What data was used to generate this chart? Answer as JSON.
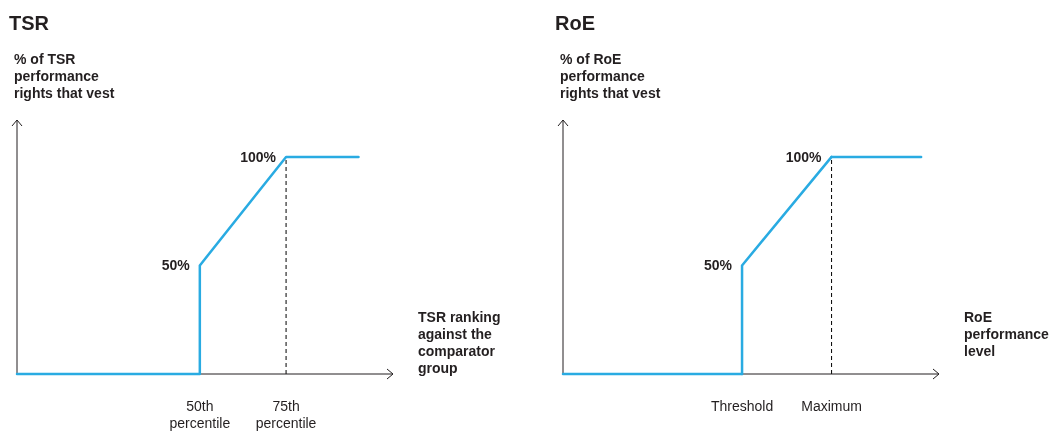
{
  "chart_data": [
    {
      "type": "line",
      "title": "TSR",
      "ylabel": "% of TSR performance rights that vest",
      "xlabel": "TSR ranking against the comparator group",
      "xlim": [
        -3,
        106
      ],
      "xticks": [
        {
          "value": 50,
          "label": "50th percentile"
        },
        {
          "value": 75,
          "label": "75th percentile"
        }
      ],
      "ylim": [
        0,
        117
      ],
      "tick_labels": "x",
      "marker": "none",
      "line_style": "solid",
      "ref_lines": [
        {
          "axis": "x",
          "value": 75,
          "line_style": "dashed",
          "color": "#000000"
        }
      ],
      "series": [
        {
          "color": "#29abe2",
          "x": [
            -3,
            50,
            50,
            75,
            96
          ],
          "values": [
            0,
            0,
            50,
            100,
            100
          ],
          "value_labels": [
            null,
            null,
            "50%",
            "100%",
            null
          ]
        }
      ]
    },
    {
      "type": "line",
      "title": "RoE",
      "ylabel": "% of RoE performance rights that vest",
      "xlabel": "RoE performance level",
      "categories": [
        null,
        null,
        "Threshold",
        "Maximum",
        null
      ],
      "ylim": [
        0,
        117
      ],
      "tick_labels": "x",
      "marker": "none",
      "line_style": "solid",
      "ref_lines": [
        {
          "axis": "x",
          "value": "Maximum",
          "line_style": "dashed",
          "color": "#000000"
        }
      ],
      "series": [
        {
          "color": "#29abe2",
          "values": [
            0,
            0,
            0,
            null,
            null
          ]
        },
        {
          "color": "#29abe2",
          "x": [
            "Threshold",
            "Threshold",
            "Maximum"
          ],
          "values": [
            0,
            50,
            100
          ],
          "value_labels": [
            null,
            "50%",
            "100%"
          ]
        },
        {
          "color": "#29abe2",
          "values": [
            null,
            null,
            null,
            100,
            100
          ]
        }
      ]
    }
  ]
}
